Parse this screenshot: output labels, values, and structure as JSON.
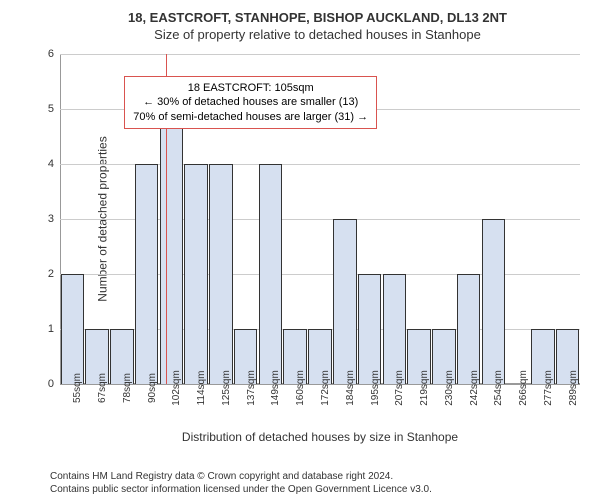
{
  "titles": {
    "line1": "18, EASTCROFT, STANHOPE, BISHOP AUCKLAND, DL13 2NT",
    "line2": "Size of property relative to detached houses in Stanhope"
  },
  "y_axis": {
    "label": "Number of detached properties",
    "min": 0,
    "max": 6,
    "step": 1
  },
  "x_axis": {
    "label": "Distribution of detached houses by size in Stanhope",
    "categories": [
      "55sqm",
      "67sqm",
      "78sqm",
      "90sqm",
      "102sqm",
      "114sqm",
      "125sqm",
      "137sqm",
      "149sqm",
      "160sqm",
      "172sqm",
      "184sqm",
      "195sqm",
      "207sqm",
      "219sqm",
      "230sqm",
      "242sqm",
      "254sqm",
      "266sqm",
      "277sqm",
      "289sqm"
    ]
  },
  "bars": {
    "values": [
      2,
      1,
      1,
      4,
      5,
      4,
      4,
      1,
      4,
      1,
      1,
      3,
      2,
      2,
      1,
      1,
      2,
      3,
      0,
      1,
      1
    ],
    "fill_color": "#d6e0f0",
    "border_color": "#333333",
    "width_ratio": 0.95
  },
  "reference_line": {
    "category_index": 4,
    "fraction_within": 0.25,
    "color": "#d9534f",
    "height_value": 6
  },
  "annotation": {
    "lines": [
      "18 EASTCROFT: 105sqm",
      "← 30% of detached houses are smaller (13)",
      "70% of semi-detached houses are larger (31) →"
    ],
    "border_color": "#d9534f",
    "top_value": 5.6,
    "left_category_index": 3
  },
  "grid": {
    "color": "#cccccc",
    "zero_color": "#999999"
  },
  "footer": {
    "line1": "Contains HM Land Registry data © Crown copyright and database right 2024.",
    "line2": "Contains public sector information licensed under the Open Government Licence v3.0."
  },
  "background_color": "#ffffff"
}
